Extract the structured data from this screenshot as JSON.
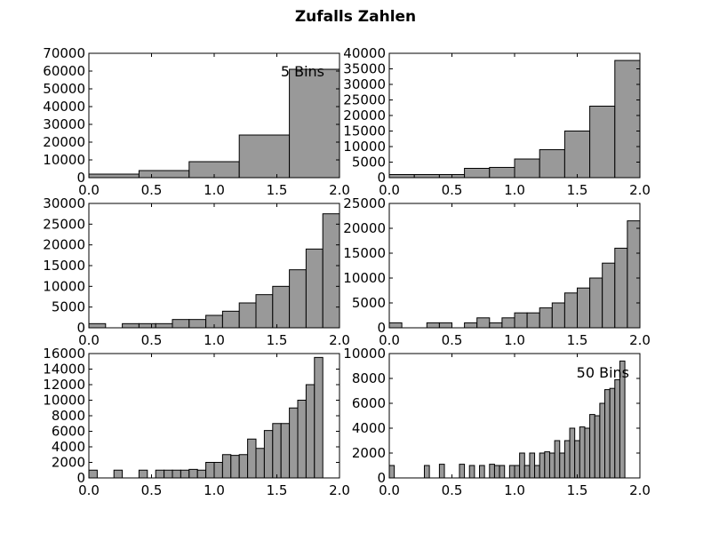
{
  "figure": {
    "title": "Zufalls Zahlen"
  },
  "style": {
    "bar_fill": "#999999",
    "bar_stroke": "#000000",
    "axes_stroke": "#000000"
  },
  "chart_data": [
    {
      "type": "bar",
      "title": "",
      "xlim": [
        0.0,
        2.0
      ],
      "ylim": [
        0,
        70000
      ],
      "xticks": [
        "0.0",
        "0.5",
        "1.0",
        "1.5",
        "2.0"
      ],
      "yticks": [
        "0",
        "10000",
        "20000",
        "30000",
        "40000",
        "50000",
        "60000",
        "70000"
      ],
      "annotation": "5 Bins",
      "bin_edges": [
        0.0,
        0.4,
        0.8,
        1.2,
        1.6,
        2.0
      ],
      "values": [
        2000,
        4000,
        9000,
        24000,
        61000
      ]
    },
    {
      "type": "bar",
      "title": "",
      "xlim": [
        0.0,
        2.0
      ],
      "ylim": [
        0,
        40000
      ],
      "xticks": [
        "0.0",
        "0.5",
        "1.0",
        "1.5",
        "2.0"
      ],
      "yticks": [
        "0",
        "5000",
        "10000",
        "15000",
        "20000",
        "25000",
        "30000",
        "35000",
        "40000"
      ],
      "annotation": "",
      "bin_edges": [
        0.0,
        0.2,
        0.4,
        0.6,
        0.8,
        1.0,
        1.2,
        1.4,
        1.6,
        1.8,
        2.0
      ],
      "values": [
        1000,
        1000,
        1000,
        3000,
        3300,
        6000,
        9000,
        15000,
        23000,
        37700
      ]
    },
    {
      "type": "bar",
      "title": "",
      "xlim": [
        0.0,
        2.0
      ],
      "ylim": [
        0,
        30000
      ],
      "xticks": [
        "0.0",
        "0.5",
        "1.0",
        "1.5",
        "2.0"
      ],
      "yticks": [
        "0",
        "5000",
        "10000",
        "15000",
        "20000",
        "25000",
        "30000"
      ],
      "annotation": "",
      "bin_edges": [
        0.0,
        0.1333,
        0.2667,
        0.4,
        0.5333,
        0.6667,
        0.8,
        0.9333,
        1.0667,
        1.2,
        1.3333,
        1.4667,
        1.6,
        1.7333,
        1.8667,
        2.0
      ],
      "values": [
        1000,
        0,
        1000,
        1000,
        1000,
        2000,
        2000,
        3000,
        4000,
        6000,
        8000,
        10000,
        14000,
        19000,
        27500
      ]
    },
    {
      "type": "bar",
      "title": "",
      "xlim": [
        0.0,
        2.0
      ],
      "ylim": [
        0,
        25000
      ],
      "xticks": [
        "0.0",
        "0.5",
        "1.0",
        "1.5",
        "2.0"
      ],
      "yticks": [
        "0",
        "5000",
        "10000",
        "15000",
        "20000",
        "25000"
      ],
      "annotation": "",
      "bin_edges": [
        0.0,
        0.1,
        0.2,
        0.3,
        0.4,
        0.5,
        0.6,
        0.7,
        0.8,
        0.9,
        1.0,
        1.1,
        1.2,
        1.3,
        1.4,
        1.5,
        1.6,
        1.7,
        1.8,
        1.9,
        2.0
      ],
      "values": [
        1000,
        0,
        0,
        1000,
        1000,
        0,
        1000,
        2000,
        1000,
        2000,
        3000,
        3000,
        4000,
        5000,
        7000,
        8000,
        10000,
        13000,
        16000,
        21500
      ]
    },
    {
      "type": "bar",
      "title": "",
      "xlim": [
        0.0,
        2.0
      ],
      "ylim": [
        0,
        16000
      ],
      "xticks": [
        "0.0",
        "0.5",
        "1.0",
        "1.5",
        "2.0"
      ],
      "yticks": [
        "0",
        "2000",
        "4000",
        "6000",
        "8000",
        "10000",
        "12000",
        "14000",
        "16000"
      ],
      "annotation": "",
      "bin_edges": [
        0.0,
        0.0667,
        0.1333,
        0.2,
        0.2667,
        0.3333,
        0.4,
        0.4667,
        0.5333,
        0.6,
        0.6667,
        0.7333,
        0.8,
        0.8667,
        0.9333,
        1.0,
        1.0667,
        1.1333,
        1.2,
        1.2667,
        1.3333,
        1.4,
        1.4667,
        1.5333,
        1.6,
        1.6667,
        1.7333,
        1.8,
        1.8667,
        1.9333,
        2.0
      ],
      "values": [
        1000,
        0,
        0,
        1000,
        0,
        0,
        1000,
        0,
        1000,
        1000,
        1000,
        1000,
        1100,
        1000,
        2000,
        2000,
        3000,
        2900,
        3000,
        5000,
        3800,
        6100,
        7000,
        7000,
        9000,
        10000,
        12000,
        15500,
        0,
        0
      ]
    },
    {
      "type": "bar",
      "title": "",
      "xlim": [
        0.0,
        2.0
      ],
      "ylim": [
        0,
        10000
      ],
      "xticks": [
        "0.0",
        "0.5",
        "1.0",
        "1.5",
        "2.0"
      ],
      "yticks": [
        "0",
        "2000",
        "4000",
        "6000",
        "8000",
        "10000"
      ],
      "annotation": "50 Bins",
      "bin_edges": [
        0.0,
        0.04,
        0.08,
        0.12,
        0.16,
        0.2,
        0.24,
        0.28,
        0.32,
        0.36,
        0.4,
        0.44,
        0.48,
        0.52,
        0.56,
        0.6,
        0.64,
        0.68,
        0.72,
        0.76,
        0.8,
        0.84,
        0.88,
        0.92,
        0.96,
        1.0,
        1.04,
        1.08,
        1.12,
        1.16,
        1.2,
        1.24,
        1.28,
        1.32,
        1.36,
        1.4,
        1.44,
        1.48,
        1.52,
        1.56,
        1.6,
        1.64,
        1.68,
        1.72,
        1.76,
        1.8,
        1.84,
        1.88,
        1.92,
        1.96,
        2.0
      ],
      "values": [
        1000,
        0,
        0,
        0,
        0,
        0,
        0,
        1000,
        0,
        0,
        1100,
        0,
        0,
        0,
        1100,
        0,
        1000,
        0,
        1000,
        0,
        1100,
        1000,
        1000,
        0,
        1000,
        1000,
        2000,
        1000,
        2000,
        1000,
        2000,
        2100,
        2000,
        3000,
        2000,
        3000,
        4000,
        3000,
        4100,
        4000,
        5100,
        5000,
        6000,
        7100,
        7200,
        7900,
        9400,
        0,
        0,
        0
      ]
    }
  ]
}
